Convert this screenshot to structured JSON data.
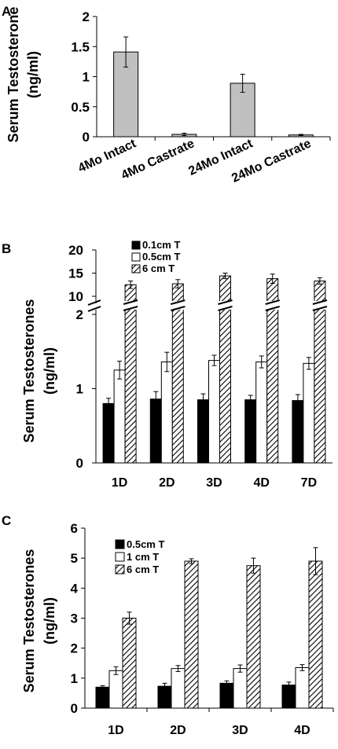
{
  "chart_data": [
    {
      "panel": "A",
      "type": "bar",
      "ylabel_line1": "Serum Testosterone",
      "ylabel_line2": "(ng/ml)",
      "categories": [
        "4Mo Intact",
        "4Mo Castrate",
        "24Mo Intact",
        "24Mo Castrate"
      ],
      "series": [
        {
          "values": [
            1.41,
            0.04,
            0.89,
            0.03
          ],
          "errors": [
            0.25,
            0.02,
            0.15,
            0.01
          ],
          "color": "#c0c0c0"
        }
      ],
      "ylim": [
        0,
        2
      ],
      "yticks": [
        "0",
        "0.5",
        "1",
        "1.5",
        "2"
      ],
      "ytick_values": [
        0,
        0.5,
        1,
        1.5,
        2
      ],
      "grid": false
    },
    {
      "panel": "B",
      "type": "bar",
      "ylabel_line1": "Serum Testosterones",
      "ylabel_line2": "(ng/ml)",
      "categories": [
        "1D",
        "2D",
        "3D",
        "4D",
        "7D"
      ],
      "series": [
        {
          "name": "0.1cm T",
          "fill": "black",
          "values": [
            0.8,
            0.86,
            0.85,
            0.85,
            0.84
          ],
          "errors": [
            0.07,
            0.1,
            0.08,
            0.06,
            0.08
          ]
        },
        {
          "name": "0.5cm T",
          "fill": "white",
          "values": [
            1.25,
            1.36,
            1.38,
            1.36,
            1.34
          ],
          "errors": [
            0.12,
            0.13,
            0.07,
            0.08,
            0.08
          ]
        },
        {
          "name": "6 cm T",
          "fill": "hatch",
          "values": [
            12.5,
            12.7,
            14.4,
            13.8,
            13.3
          ],
          "errors": [
            0.8,
            0.9,
            0.6,
            1.0,
            0.7
          ]
        }
      ],
      "axis_break": {
        "lower": [
          0,
          2
        ],
        "upper": [
          10,
          20
        ]
      },
      "yticks": [
        "0",
        "1",
        "2",
        "10",
        "15",
        "20"
      ],
      "ytick_values": [
        0,
        1,
        2,
        10,
        15,
        20
      ],
      "legend": "top-left",
      "grid": false
    },
    {
      "panel": "C",
      "type": "bar",
      "ylabel_line1": "Serum Testosterones",
      "ylabel_line2": "(ng/ml)",
      "categories": [
        "1D",
        "2D",
        "3D",
        "4D"
      ],
      "series": [
        {
          "name": "0.5cm T",
          "fill": "black",
          "values": [
            0.7,
            0.73,
            0.83,
            0.77
          ],
          "errors": [
            0.05,
            0.1,
            0.08,
            0.1
          ]
        },
        {
          "name": "1 cm T",
          "fill": "white",
          "values": [
            1.25,
            1.32,
            1.32,
            1.35
          ],
          "errors": [
            0.13,
            0.1,
            0.12,
            0.1
          ]
        },
        {
          "name": "6 cm T",
          "fill": "hatch",
          "values": [
            3.0,
            4.9,
            4.75,
            4.9
          ],
          "errors": [
            0.2,
            0.08,
            0.25,
            0.45
          ]
        }
      ],
      "ylim": [
        0,
        6
      ],
      "yticks": [
        "0",
        "1",
        "2",
        "3",
        "4",
        "5",
        "6"
      ],
      "ytick_values": [
        0,
        1,
        2,
        3,
        4,
        5,
        6
      ],
      "legend": "top-left",
      "grid": false
    }
  ]
}
